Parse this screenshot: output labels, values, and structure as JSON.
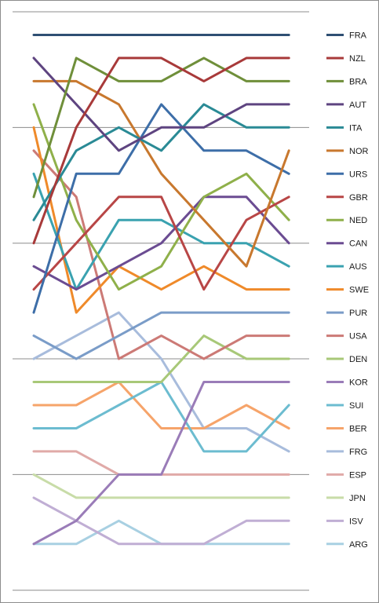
{
  "chart_data": {
    "type": "line",
    "x": [
      1,
      2,
      3,
      4,
      5,
      6,
      7
    ],
    "ylim": [
      23,
      0
    ],
    "grid": true,
    "legend_position": "right",
    "series": [
      {
        "name": "FRA",
        "color": "#2f4f73",
        "values": [
          1,
          1,
          1,
          1,
          1,
          1,
          1
        ]
      },
      {
        "name": "NZL",
        "color": "#a83a3a",
        "values": [
          10,
          5,
          2,
          2,
          3,
          2,
          2
        ]
      },
      {
        "name": "BRA",
        "color": "#6f8f3a",
        "values": [
          8,
          2,
          3,
          3,
          2,
          3,
          3
        ]
      },
      {
        "name": "AUT",
        "color": "#5e4480",
        "values": [
          2,
          4,
          6,
          5,
          5,
          4,
          4
        ]
      },
      {
        "name": "ITA",
        "color": "#2a8a95",
        "values": [
          9,
          6,
          5,
          6,
          4,
          5,
          5
        ]
      },
      {
        "name": "NOR",
        "color": "#c8782e",
        "values": [
          3,
          3,
          4,
          7,
          9,
          11,
          6
        ]
      },
      {
        "name": "URS",
        "color": "#3d6ea8",
        "values": [
          13,
          7,
          7,
          4,
          6,
          6,
          7
        ]
      },
      {
        "name": "GBR",
        "color": "#b84646",
        "values": [
          12,
          10,
          8,
          8,
          12,
          9,
          8
        ]
      },
      {
        "name": "NED",
        "color": "#8fb04a",
        "values": [
          4,
          9,
          12,
          11,
          8,
          7,
          9
        ]
      },
      {
        "name": "CAN",
        "color": "#6b4c92",
        "values": [
          11,
          12,
          11,
          10,
          8,
          8,
          10
        ]
      },
      {
        "name": "AUS",
        "color": "#3aa2b0",
        "values": [
          7,
          12,
          9,
          9,
          10,
          10,
          11
        ]
      },
      {
        "name": "SWE",
        "color": "#ef8a2a",
        "values": [
          5,
          13,
          11,
          12,
          11,
          12,
          12
        ]
      },
      {
        "name": "PUR",
        "color": "#7a9cc8",
        "values": [
          14,
          15,
          14,
          13,
          13,
          13,
          13
        ]
      },
      {
        "name": "USA",
        "color": "#cc7a76",
        "values": [
          6,
          8,
          15,
          14,
          15,
          14,
          14
        ]
      },
      {
        "name": "DEN",
        "color": "#a8c878",
        "values": [
          16,
          16,
          16,
          16,
          14,
          15,
          15
        ]
      },
      {
        "name": "KOR",
        "color": "#9a7cb8",
        "values": [
          23,
          22,
          20,
          20,
          16,
          16,
          16
        ]
      },
      {
        "name": "SUI",
        "color": "#6cbcd0",
        "values": [
          18,
          18,
          17,
          16,
          19,
          19,
          17
        ]
      },
      {
        "name": "BER",
        "color": "#f6a46a",
        "values": [
          17,
          17,
          16,
          18,
          18,
          17,
          18
        ]
      },
      {
        "name": "FRG",
        "color": "#a8bcdc",
        "values": [
          15,
          14,
          13,
          15,
          18,
          18,
          19
        ]
      },
      {
        "name": "ESP",
        "color": "#e0aaa8",
        "values": [
          19,
          19,
          20,
          20,
          20,
          20,
          20
        ]
      },
      {
        "name": "JPN",
        "color": "#c8dca8",
        "values": [
          20,
          21,
          21,
          21,
          21,
          21,
          21
        ]
      },
      {
        "name": "ISV",
        "color": "#c0aed4",
        "values": [
          21,
          22,
          23,
          23,
          23,
          22,
          22
        ]
      },
      {
        "name": "ARG",
        "color": "#a8d0e2",
        "values": [
          23,
          23,
          22,
          23,
          23,
          23,
          23
        ]
      }
    ]
  }
}
